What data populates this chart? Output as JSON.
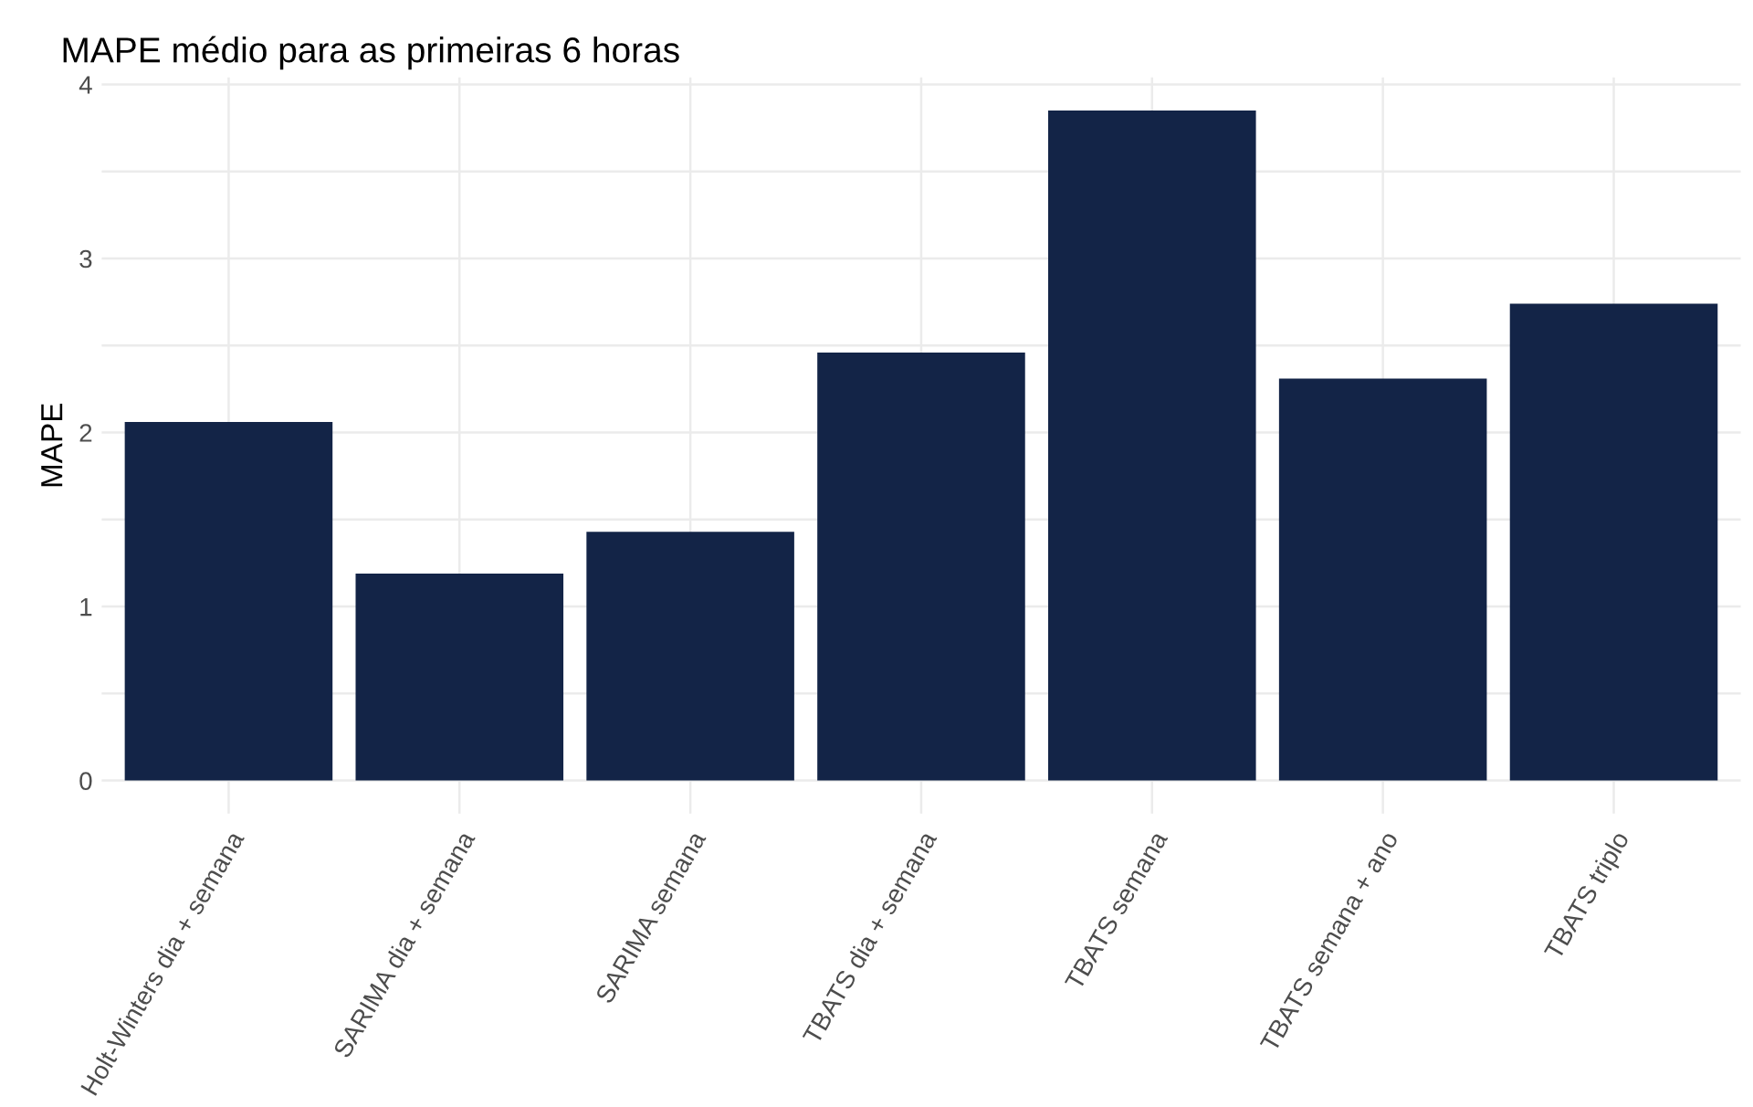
{
  "chart_data": {
    "type": "bar",
    "title": "MAPE médio para as primeiras 6 horas",
    "ylabel": "MAPE",
    "categories": [
      "Holt-Winters dia + semana",
      "SARIMA dia + semana",
      "SARIMA semana",
      "TBATS dia + semana",
      "TBATS semana",
      "TBATS semana + ano",
      "TBATS triplo"
    ],
    "values": [
      2.06,
      1.19,
      1.43,
      2.46,
      3.85,
      2.31,
      2.74
    ],
    "color": "#132447",
    "ylim": [
      -0.19,
      4.04
    ],
    "yticks": [
      0,
      {
        "value": 0.5,
        "label": null
      },
      1,
      {
        "value": 1.5,
        "label": null
      },
      2,
      {
        "value": 2.5,
        "label": null
      },
      3,
      {
        "value": 3.5,
        "label": null
      },
      4
    ],
    "grid": true
  }
}
